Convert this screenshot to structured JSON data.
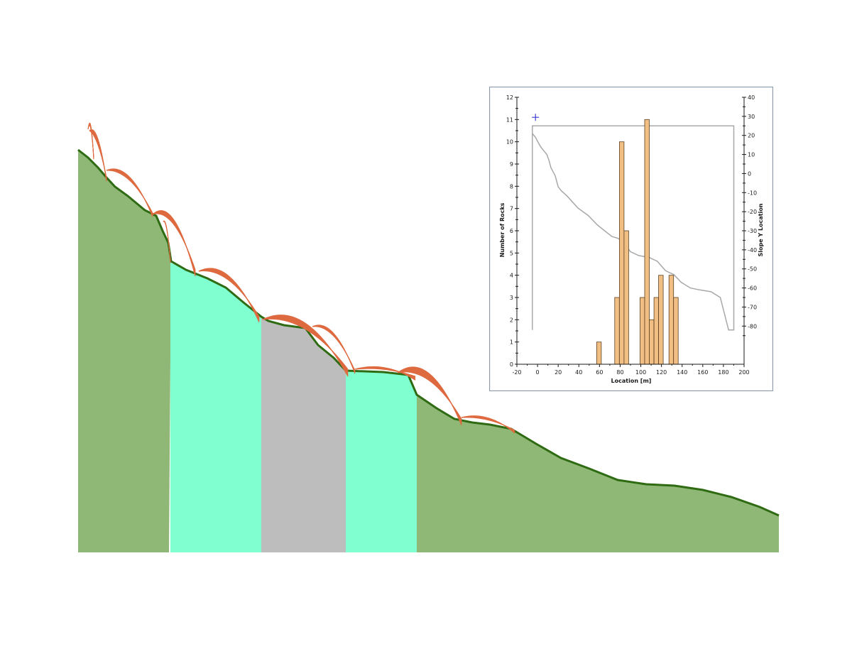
{
  "slope_profile": {
    "colors": {
      "slope_ground": "#8fb877",
      "slope_outline": "#2e6b12",
      "material_cyan": "#80ffd0",
      "material_gray": "#bdbdbd",
      "trajectory": "#de6a40"
    }
  },
  "chart_data": {
    "type": "bar",
    "title": "",
    "xlabel": "Location [m]",
    "ylabel": "Number of Rocks",
    "y2label": "Slope Y Location",
    "xlim": [
      -20,
      200
    ],
    "ylim": [
      0,
      12
    ],
    "y2lim": [
      -100,
      40
    ],
    "x_ticks": [
      -20,
      0,
      20,
      40,
      60,
      80,
      100,
      120,
      140,
      160,
      180,
      200
    ],
    "y_ticks": [
      0,
      1,
      2,
      3,
      4,
      5,
      6,
      7,
      8,
      9,
      10,
      11,
      12
    ],
    "y2_ticks": [
      -80,
      -70,
      -60,
      -50,
      -40,
      -30,
      -20,
      -10,
      0,
      10,
      20,
      30,
      40
    ],
    "bar_width": 4.5,
    "bars": [
      {
        "x": 59.5,
        "value": 1
      },
      {
        "x": 77,
        "value": 3
      },
      {
        "x": 81.5,
        "value": 10
      },
      {
        "x": 86,
        "value": 6
      },
      {
        "x": 101.5,
        "value": 3
      },
      {
        "x": 106,
        "value": 11
      },
      {
        "x": 110.5,
        "value": 2
      },
      {
        "x": 115,
        "value": 3
      },
      {
        "x": 119.5,
        "value": 4
      },
      {
        "x": 129.5,
        "value": 4
      },
      {
        "x": 134,
        "value": 3
      }
    ],
    "slope_line": {
      "x": [
        -5,
        -5,
        190,
        190,
        185,
        177,
        168,
        157,
        148,
        139,
        132,
        124,
        116,
        108,
        98,
        90,
        83,
        78,
        72,
        65,
        58,
        49,
        39,
        29,
        23,
        20,
        18,
        17,
        15,
        13,
        11,
        9,
        6,
        3,
        1,
        -2,
        -5,
        -5
      ],
      "y": [
        -82,
        25,
        25,
        -82,
        -82,
        -65,
        -62,
        -61,
        -60,
        -57,
        -53,
        -51,
        -46,
        -44,
        -43,
        -41,
        -36,
        -34,
        -33,
        -30,
        -27,
        -22,
        -18,
        -12,
        -9,
        -7,
        -3,
        -1,
        1,
        3,
        7,
        10,
        12,
        14,
        16,
        19,
        21,
        25
      ],
      "color": "#a8a8a8"
    },
    "marker": {
      "x": -2,
      "y": 11.1,
      "color": "#2222cc"
    },
    "bar_fill": "#f1bf84",
    "bar_stroke": "#5c4020"
  }
}
